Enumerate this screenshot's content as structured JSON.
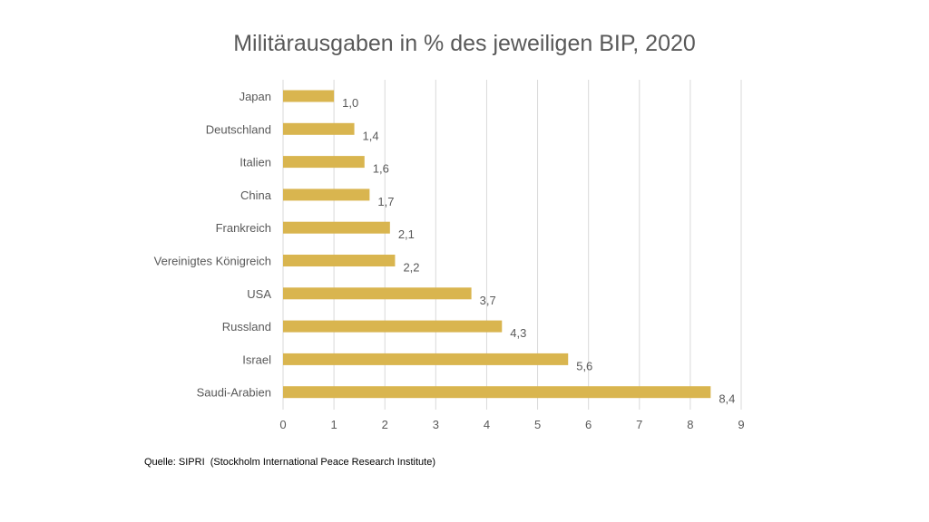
{
  "chart_data": {
    "type": "bar",
    "orientation": "horizontal",
    "title": "Militärausgaben in % des jeweiligen BIP, 2020",
    "categories": [
      "Japan",
      "Deutschland",
      "Italien",
      "China",
      "Frankreich",
      "Vereinigtes Königreich",
      "USA",
      "Russland",
      "Israel",
      "Saudi-Arabien"
    ],
    "values": [
      1.0,
      1.4,
      1.6,
      1.7,
      2.1,
      2.2,
      3.7,
      4.3,
      5.6,
      8.4
    ],
    "value_labels": [
      "1,0",
      "1,4",
      "1,6",
      "1,7",
      "2,1",
      "2,2",
      "3,7",
      "4,3",
      "5,6",
      "8,4"
    ],
    "xlim": [
      0,
      9
    ],
    "x_ticks": [
      "0",
      "1",
      "2",
      "3",
      "4",
      "5",
      "6",
      "7",
      "8",
      "9"
    ],
    "grid": true,
    "colors": {
      "bar": "#D9B54F",
      "grid": "#D9D9D9",
      "text": "#595959",
      "title": "#595959"
    }
  },
  "source": "Quelle: SIPRI  (Stockholm International Peace Research Institute)"
}
